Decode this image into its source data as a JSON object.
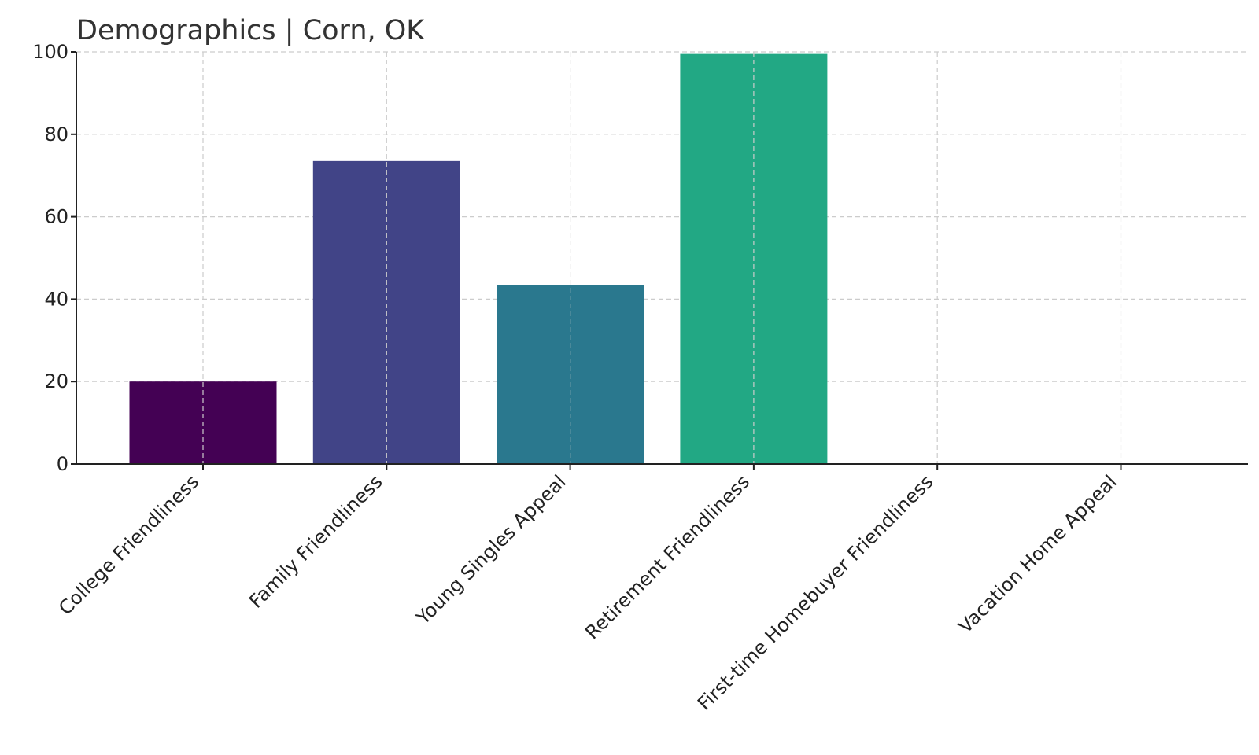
{
  "chart_data": {
    "type": "bar",
    "title": "Demographics | Corn, OK",
    "xlabel": "",
    "ylabel": "",
    "categories": [
      "College Friendliness",
      "Family Friendliness",
      "Young Singles Appeal",
      "Retirement Friendliness",
      "First-time Homebuyer Friendliness",
      "Vacation Home Appeal"
    ],
    "values": [
      20,
      73.5,
      43.5,
      99.5,
      0,
      0
    ],
    "colors": [
      "#440154",
      "#414487",
      "#2a788e",
      "#22a884",
      "#7ad151",
      "#fde725"
    ],
    "ylim": [
      0,
      100
    ],
    "yticks": [
      0,
      20,
      40,
      60,
      80,
      100
    ],
    "grid": true,
    "legend": "none"
  }
}
